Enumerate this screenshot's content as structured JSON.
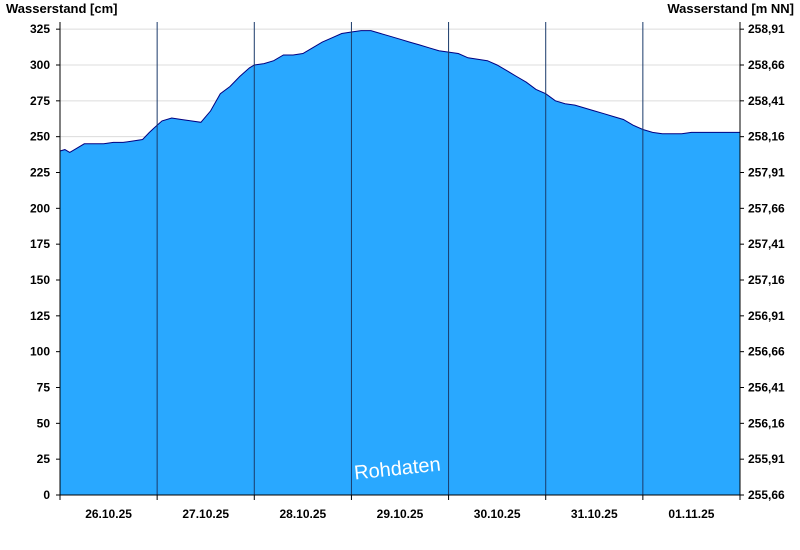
{
  "chart_data": {
    "type": "area",
    "ylabel_left": "Wasserstand [cm]",
    "ylabel_right": "Wasserstand [m NN]",
    "ylim": [
      0,
      330
    ],
    "y_ticks_left": [
      "0",
      "25",
      "50",
      "75",
      "100",
      "125",
      "150",
      "175",
      "200",
      "225",
      "250",
      "275",
      "300",
      "325"
    ],
    "y_ticks_right": [
      "255,66",
      "255,91",
      "256,16",
      "256,41",
      "256,66",
      "256,91",
      "257,16",
      "257,41",
      "257,66",
      "257,91",
      "258,16",
      "258,41",
      "258,66",
      "258,91"
    ],
    "x_ticks": [
      "26.10.25",
      "27.10.25",
      "28.10.25",
      "29.10.25",
      "30.10.25",
      "31.10.25",
      "01.11.25"
    ],
    "x_range_days": [
      0,
      7
    ],
    "day_separators": [
      1,
      2,
      3,
      4,
      5,
      6
    ],
    "grid": "horizontal",
    "fill_color": "#29a8ff",
    "line_color": "#000080",
    "watermark": "Rohdaten",
    "series": [
      {
        "x": [
          0.0,
          0.05,
          0.1,
          0.15,
          0.25,
          0.35,
          0.45,
          0.55,
          0.65,
          0.75,
          0.85,
          0.92,
          1.0,
          1.05,
          1.15,
          1.25,
          1.35,
          1.45,
          1.55,
          1.65,
          1.75,
          1.85,
          1.95,
          2.0,
          2.1,
          2.2,
          2.3,
          2.4,
          2.5,
          2.6,
          2.7,
          2.8,
          2.9,
          3.0,
          3.1,
          3.2,
          3.3,
          3.4,
          3.5,
          3.6,
          3.7,
          3.8,
          3.9,
          4.0,
          4.1,
          4.2,
          4.3,
          4.4,
          4.5,
          4.6,
          4.7,
          4.8,
          4.9,
          5.0,
          5.1,
          5.2,
          5.3,
          5.4,
          5.5,
          5.6,
          5.7,
          5.8,
          5.9,
          6.0,
          6.1,
          6.2,
          6.3,
          6.4,
          6.5,
          6.6,
          6.7,
          6.8,
          6.9,
          7.0
        ],
        "y": [
          240,
          241,
          239,
          241,
          245,
          245,
          245,
          246,
          246,
          247,
          248,
          253,
          258,
          261,
          263,
          262,
          261,
          260,
          268,
          280,
          285,
          292,
          298,
          300,
          301,
          303,
          307,
          307,
          308,
          312,
          316,
          319,
          322,
          323,
          324,
          324,
          322,
          320,
          318,
          316,
          314,
          312,
          310,
          309,
          308,
          305,
          304,
          303,
          300,
          296,
          292,
          288,
          283,
          280,
          275,
          273,
          272,
          270,
          268,
          266,
          264,
          262,
          258,
          255,
          253,
          252,
          252,
          252,
          253,
          253,
          253,
          253,
          253,
          253
        ]
      }
    ]
  }
}
